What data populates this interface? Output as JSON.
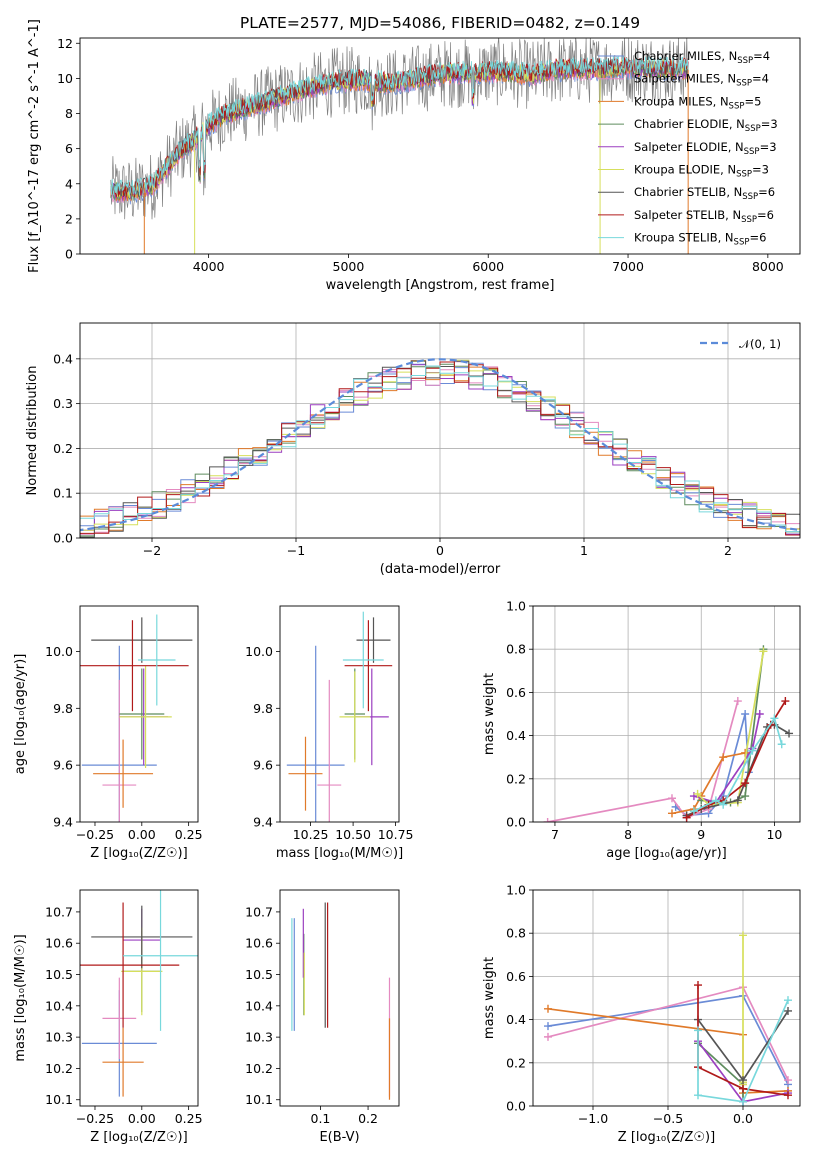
{
  "figure": {
    "title": "PLATE=2577, MJD=54086, FIBERID=0482, z=0.149"
  },
  "model_colors": [
    {
      "name": "Chabrier MILES",
      "nssp": "4",
      "color": "#6a8bd6"
    },
    {
      "name": "Salpeter MILES",
      "nssp": "4",
      "color": "#e48ac0"
    },
    {
      "name": "Kroupa MILES",
      "nssp": "5",
      "color": "#e07a2a"
    },
    {
      "name": "Chabrier ELODIE",
      "nssp": "3",
      "color": "#5e8c5e"
    },
    {
      "name": "Salpeter ELODIE",
      "nssp": "3",
      "color": "#9b3fc0"
    },
    {
      "name": "Kroupa ELODIE",
      "nssp": "3",
      "color": "#d6df5c"
    },
    {
      "name": "Chabrier STELIB",
      "nssp": "6",
      "color": "#555555"
    },
    {
      "name": "Salpeter STELIB",
      "nssp": "6",
      "color": "#b01a1a"
    },
    {
      "name": "Kroupa STELIB",
      "nssp": "6",
      "color": "#78d8dc"
    }
  ],
  "chart_data": [
    {
      "id": "spectrum",
      "type": "line",
      "xlabel": "wavelength [Angstrom, rest frame]",
      "ylabel": "Flux [f_λ10^-17 erg cm^-2 s^-1 A^-1]",
      "xlim": [
        3080,
        8230
      ],
      "ylim": [
        0,
        12.3
      ],
      "xticks": [
        4000,
        5000,
        6000,
        7000,
        8000
      ],
      "yticks": [
        0,
        2,
        4,
        6,
        8,
        10,
        12
      ],
      "legend_position": "upper right",
      "data_color": "#808080",
      "continuum": {
        "x": [
          3300,
          3450,
          3600,
          3700,
          3800,
          3900,
          4000,
          4100,
          4300,
          4500,
          4700,
          4900,
          5100,
          5300,
          5500,
          5700,
          5900,
          6100,
          6300,
          6500,
          6700,
          6900,
          7100,
          7300
        ],
        "y": [
          3.6,
          3.5,
          3.9,
          4.9,
          5.9,
          6.5,
          7.3,
          7.9,
          8.4,
          8.9,
          9.4,
          9.8,
          9.9,
          9.7,
          10.0,
          10.3,
          10.3,
          10.4,
          10.2,
          10.5,
          10.5,
          10.6,
          10.6,
          10.5
        ]
      }
    },
    {
      "id": "residuals",
      "type": "line",
      "xlabel": "(data-model)/error",
      "ylabel": "Normed distribution",
      "xlim": [
        -2.5,
        2.5
      ],
      "ylim": [
        0,
        0.48
      ],
      "xticks": [
        -2,
        -1,
        0,
        1,
        2
      ],
      "yticks": [
        0.0,
        0.1,
        0.2,
        0.3,
        0.4
      ],
      "grid": true,
      "legend_position": "upper right",
      "reference_curve": {
        "label": "𝒩(0, 1)",
        "mean": 0,
        "sigma": 1,
        "color": "#5b8bd9"
      },
      "bin_width": 0.1
    },
    {
      "id": "age-vs-Z",
      "type": "scatter",
      "xlabel": "Z [log₁₀(Z/Z☉)]",
      "ylabel": "age  [log₁₀(age/yr)]",
      "xlim": [
        -0.33,
        0.3
      ],
      "ylim": [
        9.4,
        10.16
      ],
      "xticks": [
        -0.25,
        0.0,
        0.25
      ],
      "yticks": [
        9.4,
        9.6,
        9.8,
        10.0
      ],
      "errorbars": [
        {
          "x": -0.12,
          "xerr": 0.2,
          "y": 9.6,
          "yerr": 0.42
        },
        {
          "x": -0.12,
          "xerr": 0.09,
          "y": 9.53,
          "yerr": 0.37
        },
        {
          "x": -0.1,
          "xerr": 0.16,
          "y": 9.57,
          "yerr": 0.12
        },
        {
          "x": 0.0,
          "xerr": 0.12,
          "y": 9.78,
          "yerr": 0.16
        },
        {
          "x": 0.01,
          "xerr": 0.13,
          "y": 9.77,
          "yerr": 0.17
        },
        {
          "x": 0.02,
          "xerr": 0.14,
          "y": 9.77,
          "yerr": 0.18
        },
        {
          "x": 0.0,
          "xerr": 0.27,
          "y": 10.04,
          "yerr": 0.08
        },
        {
          "x": -0.05,
          "xerr": 0.3,
          "y": 9.95,
          "yerr": 0.16
        },
        {
          "x": 0.08,
          "xerr": 0.1,
          "y": 9.97,
          "yerr": 0.16
        }
      ]
    },
    {
      "id": "age-vs-mass",
      "type": "scatter",
      "xlabel": "mass [log₁₀(M/M☉)]",
      "ylabel": "",
      "xlim": [
        10.07,
        10.77
      ],
      "ylim": [
        9.4,
        10.16
      ],
      "xticks": [
        10.25,
        10.5,
        10.75
      ],
      "yticks": [
        9.4,
        9.6,
        9.8,
        10.0
      ],
      "errorbars": [
        {
          "x": 10.28,
          "xerr": 0.17,
          "y": 9.6,
          "yerr": 0.42
        },
        {
          "x": 10.36,
          "xerr": 0.07,
          "y": 9.53,
          "yerr": 0.37
        },
        {
          "x": 10.22,
          "xerr": 0.1,
          "y": 9.57,
          "yerr": 0.13
        },
        {
          "x": 10.51,
          "xerr": 0.06,
          "y": 9.78,
          "yerr": 0.16
        },
        {
          "x": 10.61,
          "xerr": 0.1,
          "y": 9.77,
          "yerr": 0.17
        },
        {
          "x": 10.51,
          "xerr": 0.09,
          "y": 9.77,
          "yerr": 0.16
        },
        {
          "x": 10.62,
          "xerr": 0.1,
          "y": 10.04,
          "yerr": 0.08
        },
        {
          "x": 10.59,
          "xerr": 0.14,
          "y": 9.95,
          "yerr": 0.16
        },
        {
          "x": 10.56,
          "xerr": 0.12,
          "y": 9.97,
          "yerr": 0.17
        }
      ]
    },
    {
      "id": "massweight-vs-age",
      "type": "line",
      "xlabel": "age  [log₁₀(age/yr)]",
      "ylabel": "mass weight",
      "xlim": [
        6.7,
        10.35
      ],
      "ylim": [
        0,
        1.0
      ],
      "xticks": [
        7,
        8,
        9,
        10
      ],
      "yticks": [
        0.0,
        0.2,
        0.4,
        0.6,
        0.8,
        1.0
      ],
      "grid": true,
      "series": [
        {
          "x": [
            8.65,
            8.8,
            9.1,
            9.3,
            9.6,
            9.65
          ],
          "y": [
            0.07,
            0.03,
            0.04,
            0.12,
            0.5,
            0.23
          ]
        },
        {
          "x": [
            6.9,
            8.6,
            8.8,
            9.1,
            9.5
          ],
          "y": [
            0.0,
            0.11,
            0.02,
            0.06,
            0.56
          ]
        },
        {
          "x": [
            8.6,
            8.9,
            9.0,
            9.3,
            9.6
          ],
          "y": [
            0.04,
            0.06,
            0.12,
            0.3,
            0.32
          ]
        },
        {
          "x": [
            9.0,
            9.4,
            9.6,
            9.85
          ],
          "y": [
            0.1,
            0.09,
            0.12,
            0.8
          ]
        },
        {
          "x": [
            8.9,
            9.2,
            9.7,
            9.8
          ],
          "y": [
            0.12,
            0.09,
            0.34,
            0.5
          ]
        },
        {
          "x": [
            8.95,
            9.1,
            9.5,
            9.85
          ],
          "y": [
            0.13,
            0.08,
            0.09,
            0.79
          ]
        },
        {
          "x": [
            8.8,
            9.0,
            9.5,
            9.9,
            10.0,
            10.2
          ],
          "y": [
            0.03,
            0.06,
            0.1,
            0.44,
            0.45,
            0.41
          ]
        },
        {
          "x": [
            8.8,
            9.1,
            9.3,
            9.6,
            9.95,
            10.15
          ],
          "y": [
            0.02,
            0.08,
            0.1,
            0.18,
            0.45,
            0.56
          ]
        },
        {
          "x": [
            8.9,
            9.2,
            9.3,
            9.7,
            10.0,
            10.1
          ],
          "y": [
            0.05,
            0.1,
            0.08,
            0.33,
            0.48,
            0.36
          ]
        }
      ]
    },
    {
      "id": "mass-vs-Z",
      "type": "scatter",
      "xlabel": "Z [log₁₀(Z/Z☉)]",
      "ylabel": "mass [log₁₀(M/M☉)]",
      "xlim": [
        -0.33,
        0.3
      ],
      "ylim": [
        10.08,
        10.77
      ],
      "xticks": [
        -0.25,
        0.0,
        0.25
      ],
      "yticks": [
        10.1,
        10.2,
        10.3,
        10.4,
        10.5,
        10.6,
        10.7
      ],
      "errorbars": [
        {
          "x": -0.12,
          "xerr": 0.2,
          "y": 10.28,
          "yerr": 0.17
        },
        {
          "x": -0.12,
          "xerr": 0.09,
          "y": 10.36,
          "yerr": 0.13
        },
        {
          "x": -0.1,
          "xerr": 0.11,
          "y": 10.22,
          "yerr": 0.11
        },
        {
          "x": 0.0,
          "xerr": 0.1,
          "y": 10.51,
          "yerr": 0.13
        },
        {
          "x": 0.0,
          "xerr": 0.1,
          "y": 10.61,
          "yerr": 0.1
        },
        {
          "x": 0.0,
          "xerr": 0.11,
          "y": 10.51,
          "yerr": 0.14
        },
        {
          "x": 0.0,
          "xerr": 0.27,
          "y": 10.62,
          "yerr": 0.1
        },
        {
          "x": -0.1,
          "xerr": 0.3,
          "y": 10.53,
          "yerr": 0.2
        },
        {
          "x": 0.1,
          "xerr": 0.2,
          "y": 10.56,
          "yerr": 0.24
        }
      ]
    },
    {
      "id": "mass-vs-EBV",
      "type": "scatter",
      "xlabel": "E(B-V)",
      "ylabel": "",
      "xlim": [
        0.015,
        0.265
      ],
      "ylim": [
        10.08,
        10.77
      ],
      "xticks": [
        0.1,
        0.2
      ],
      "yticks": [
        10.1,
        10.2,
        10.3,
        10.4,
        10.5,
        10.6,
        10.7
      ],
      "errorbars": [
        {
          "x": 0.045,
          "y": 10.5,
          "yerr": 0.18
        },
        {
          "x": 0.245,
          "y": 10.3,
          "yerr": 0.19
        },
        {
          "x": 0.245,
          "y": 10.23,
          "yerr": 0.13
        },
        {
          "x": 0.065,
          "y": 10.5,
          "yerr": 0.13
        },
        {
          "x": 0.064,
          "y": 10.6,
          "yerr": 0.11
        },
        {
          "x": 0.066,
          "y": 10.47,
          "yerr": 0.1
        },
        {
          "x": 0.11,
          "y": 10.53,
          "yerr": 0.2
        },
        {
          "x": 0.115,
          "y": 10.53,
          "yerr": 0.2
        },
        {
          "x": 0.04,
          "y": 10.5,
          "yerr": 0.18
        }
      ]
    },
    {
      "id": "massweight-vs-Z",
      "type": "line",
      "xlabel": "Z [log₁₀(Z/Z☉)]",
      "ylabel": "mass weight",
      "xlim": [
        -1.4,
        0.38
      ],
      "ylim": [
        0,
        1.0
      ],
      "xticks": [
        -1.0,
        -0.5,
        0.0
      ],
      "yticks": [
        0.0,
        0.2,
        0.4,
        0.6,
        0.8,
        1.0
      ],
      "grid": true,
      "series": [
        {
          "x": [
            -1.3,
            0.0,
            0.3
          ],
          "y": [
            0.37,
            0.51,
            0.1
          ]
        },
        {
          "x": [
            -1.3,
            0.0,
            0.3
          ],
          "y": [
            0.32,
            0.55,
            0.12
          ]
        },
        {
          "x": [
            -1.3,
            0.0,
            0.0,
            0.3
          ],
          "y": [
            0.45,
            0.33,
            0.06,
            0.07
          ]
        },
        {
          "x": [
            -0.3,
            0.0,
            0.0
          ],
          "y": [
            0.29,
            0.1,
            0.02
          ]
        },
        {
          "x": [
            -0.3,
            0.0,
            0.3
          ],
          "y": [
            0.3,
            0.02,
            0.06
          ]
        },
        {
          "x": [
            0.0,
            0.0,
            0.0
          ],
          "y": [
            0.79,
            0.1,
            0.11
          ]
        },
        {
          "x": [
            -0.3,
            0.0,
            0.3
          ],
          "y": [
            0.4,
            0.12,
            0.44
          ]
        },
        {
          "x": [
            -0.3,
            -0.3,
            0.0,
            0.3
          ],
          "y": [
            0.56,
            0.18,
            0.08,
            0.05
          ]
        },
        {
          "x": [
            -0.3,
            -0.3,
            0.0,
            0.3
          ],
          "y": [
            0.35,
            0.05,
            0.02,
            0.49
          ]
        }
      ]
    }
  ]
}
